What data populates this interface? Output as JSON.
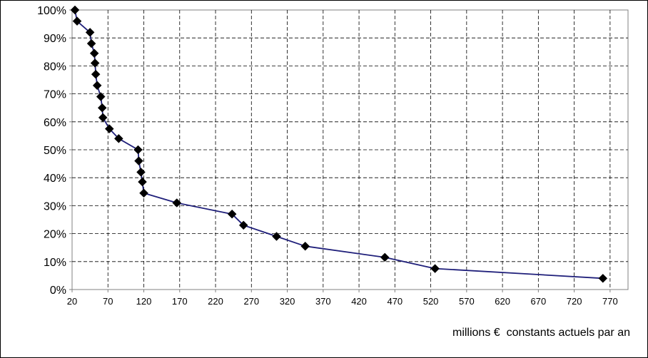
{
  "chart_data": {
    "type": "line",
    "title": "",
    "xlabel": "millions €  constants actuels par an",
    "ylabel": "",
    "xlim": [
      20,
      795
    ],
    "ylim": [
      0,
      100
    ],
    "x_ticks": [
      20,
      70,
      120,
      170,
      220,
      270,
      320,
      370,
      420,
      470,
      520,
      570,
      620,
      670,
      720,
      770
    ],
    "y_ticks": [
      0,
      10,
      20,
      30,
      40,
      50,
      60,
      70,
      80,
      90,
      100
    ],
    "y_tick_suffix": "%",
    "grid": true,
    "legend": "none",
    "series": [
      {
        "color": "#1f1f7a",
        "marker": "diamond",
        "marker_color": "#000000",
        "x": [
          24,
          27,
          45,
          47,
          51,
          52,
          53,
          55,
          60,
          62,
          63,
          72,
          85,
          112,
          113,
          116,
          118,
          120,
          166,
          243,
          259,
          305,
          345,
          456,
          526,
          760
        ],
        "y": [
          100,
          96,
          92,
          88,
          84.5,
          81,
          77,
          73,
          69,
          65,
          61.5,
          57.5,
          54,
          50,
          46,
          42,
          38.5,
          34.5,
          31,
          27,
          23,
          19,
          15.5,
          11.5,
          7.5,
          4
        ]
      }
    ]
  }
}
